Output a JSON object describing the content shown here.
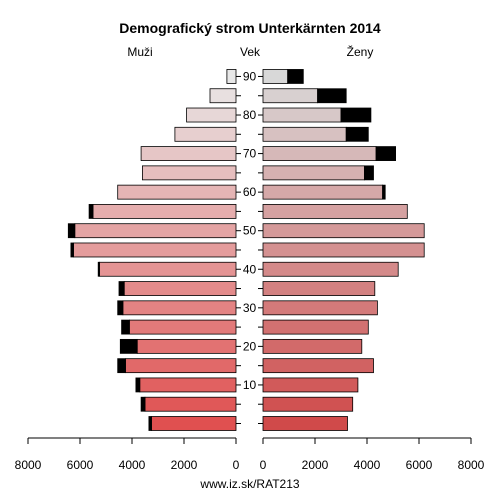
{
  "chart_data": {
    "type": "bar",
    "title": "Demografický strom Unterkärnten 2014",
    "left_label": "Muži",
    "center_label": "Vek",
    "right_label": "Ženy",
    "source": "www.iz.sk/RAT213",
    "age_groups": [
      "0-4",
      "5-9",
      "10-14",
      "15-19",
      "20-24",
      "25-29",
      "30-34",
      "35-39",
      "40-44",
      "45-49",
      "50-54",
      "55-59",
      "60-64",
      "65-69",
      "70-74",
      "75-79",
      "80-84",
      "85-89",
      "90+"
    ],
    "age_ticks": [
      10,
      20,
      30,
      40,
      50,
      60,
      70,
      80,
      90
    ],
    "x_ticks": [
      8000,
      6000,
      4000,
      2000,
      0
    ],
    "x_ticks_right": [
      0,
      2000,
      4000,
      6000,
      8000
    ],
    "xlim": [
      0,
      8000
    ],
    "series": [
      {
        "name": "Muži",
        "values": [
          3250,
          3500,
          3700,
          4250,
          3800,
          4100,
          4350,
          4300,
          5250,
          6250,
          6200,
          5500,
          4550,
          3600,
          3650,
          2350,
          1900,
          1000,
          350
        ],
        "surplus": [
          100,
          150,
          150,
          300,
          650,
          300,
          200,
          200,
          50,
          100,
          250,
          150,
          0,
          0,
          0,
          0,
          0,
          0,
          0
        ]
      },
      {
        "name": "Ženy",
        "values": [
          3250,
          3450,
          3650,
          4250,
          3800,
          4050,
          4400,
          4300,
          5200,
          6200,
          6200,
          5550,
          4600,
          3900,
          4350,
          3200,
          3000,
          2100,
          950
        ],
        "surplus": [
          0,
          0,
          0,
          0,
          0,
          0,
          0,
          0,
          0,
          0,
          0,
          0,
          100,
          350,
          750,
          850,
          1150,
          1100,
          600
        ]
      }
    ],
    "colors": {
      "base_rgb": [
        224,
        80,
        80
      ],
      "top_rgb": [
        232,
        232,
        232
      ],
      "surplus": "#000000"
    }
  }
}
